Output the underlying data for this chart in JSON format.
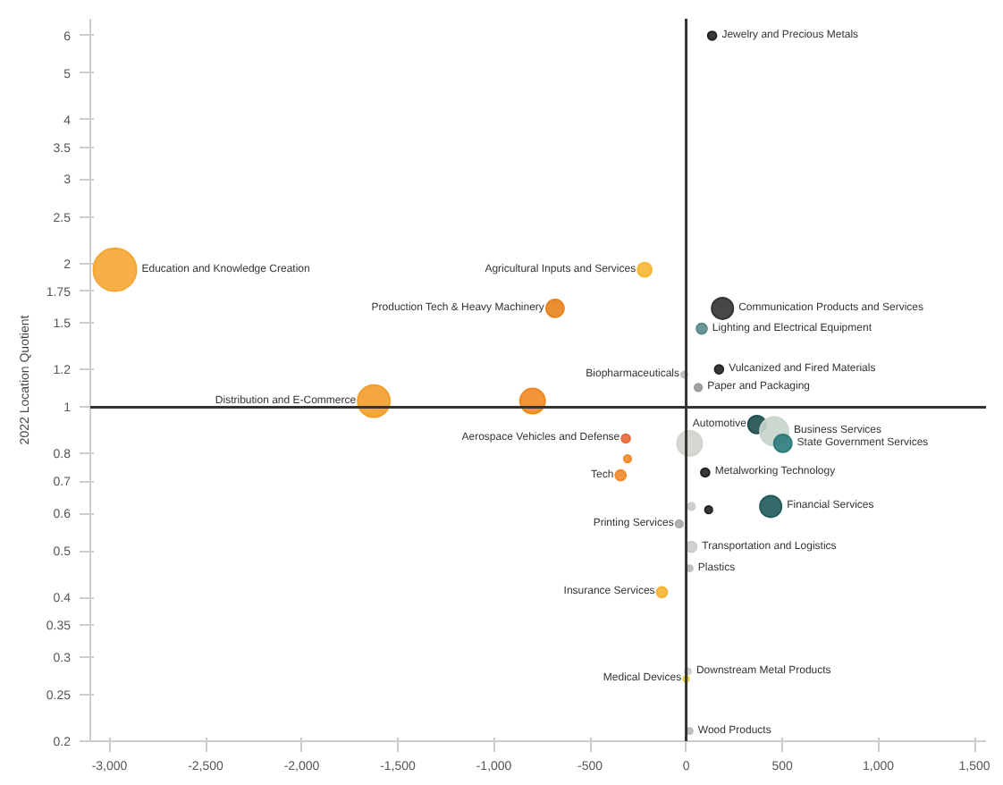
{
  "chart_data": {
    "type": "bubble",
    "ylabel": "2022 Location Quotient",
    "x": [
      -2972,
      -216,
      -682,
      135,
      189,
      81,
      171,
      -10,
      63,
      -1625,
      -799,
      368,
      458,
      503,
      -314,
      18,
      -305,
      -341,
      99,
      440,
      27,
      117,
      -36,
      27,
      18,
      -126,
      9,
      0,
      18
    ],
    "values": [
      1.94,
      1.94,
      1.61,
      5.99,
      1.61,
      1.46,
      1.2,
      1.17,
      1.1,
      1.03,
      1.03,
      0.92,
      0.89,
      0.84,
      0.86,
      0.84,
      0.78,
      0.72,
      0.73,
      0.62,
      0.62,
      0.61,
      0.57,
      0.51,
      0.46,
      0.41,
      0.28,
      0.27,
      0.21
    ],
    "sizes": [
      1,
      0.11,
      0.17,
      0.04,
      0.25,
      0.06,
      0.04,
      0.02,
      0.03,
      0.56,
      0.34,
      0.17,
      0.44,
      0.17,
      0.04,
      0.34,
      0.03,
      0.06,
      0.04,
      0.25,
      0.03,
      0.03,
      0.03,
      0.06,
      0.02,
      0.06,
      0.02,
      0.02,
      0.02
    ],
    "colors": [
      "#f5a533",
      "#f7b733",
      "#e8821e",
      "#222222",
      "#333333",
      "#5a8a8a",
      "#222222",
      "#bbbbbb",
      "#999999",
      "#f39c2a",
      "#ef8a22",
      "#1f4e4e",
      "#c8d4cc",
      "#2e7a7a",
      "#e8693a",
      "#d0d4cc",
      "#f08a2a",
      "#f08a2a",
      "#222222",
      "#1f5a5a",
      "#cccccc",
      "#222222",
      "#aaaaaa",
      "#cccccc",
      "#bbbbbb",
      "#f5b433",
      "#cccccc",
      "#e8d84a",
      "#bbbbbb"
    ],
    "annotations": [
      {
        "text": "Education and Knowledge Creation",
        "x": -2972,
        "y": 1.94
      },
      {
        "text": "Agricultural Inputs and Services",
        "x": -216,
        "y": 1.94
      },
      {
        "text": "Production Tech & Heavy Machinery",
        "x": -682,
        "y": 1.61
      },
      {
        "text": "Jewelry and Precious Metals",
        "x": 135,
        "y": 5.99
      },
      {
        "text": "Communication Products and Services",
        "x": 189,
        "y": 1.61
      },
      {
        "text": "Lighting and Electrical Equipment",
        "x": 81,
        "y": 1.46
      },
      {
        "text": "Vulcanized and Fired Materials",
        "x": 171,
        "y": 1.2
      },
      {
        "text": "Biopharmaceuticals",
        "x": -10,
        "y": 1.17
      },
      {
        "text": "Paper and Packaging",
        "x": 63,
        "y": 1.1
      },
      {
        "text": "Distribution and E-Commerce",
        "x": -1625,
        "y": 1.03
      },
      {
        "text": "Automotive",
        "x": 368,
        "y": 0.92
      },
      {
        "text": "Business Services",
        "x": 458,
        "y": 0.89
      },
      {
        "text": "State Government Services",
        "x": 503,
        "y": 0.84
      },
      {
        "text": "Aerospace Vehicles and Defense",
        "x": -314,
        "y": 0.86
      },
      {
        "text": "Tech",
        "x": -341,
        "y": 0.72
      },
      {
        "text": "Metalworking Technology",
        "x": 99,
        "y": 0.73
      },
      {
        "text": "Financial Services",
        "x": 440,
        "y": 0.62
      },
      {
        "text": "Printing Services",
        "x": -36,
        "y": 0.57
      },
      {
        "text": "Transportation and Logistics",
        "x": 27,
        "y": 0.51
      },
      {
        "text": "Plastics",
        "x": 18,
        "y": 0.46
      },
      {
        "text": "Insurance Services",
        "x": -126,
        "y": 0.41
      },
      {
        "text": "Downstream Metal Products",
        "x": 9,
        "y": 0.28
      },
      {
        "text": "Medical Devices",
        "x": 0,
        "y": 0.27
      },
      {
        "text": "Wood Products",
        "x": 18,
        "y": 0.21
      }
    ],
    "ref_lines": [
      {
        "axis": "y",
        "value": 1,
        "color": "#333333"
      },
      {
        "axis": "x",
        "value": 0,
        "color": "#333333"
      }
    ],
    "log": "y",
    "grid": false,
    "xlim": [
      -3100,
      1560
    ],
    "xticks": [
      {
        "value": -3000,
        "label": "-3,000"
      },
      {
        "value": -2500,
        "label": "-2,500"
      },
      {
        "value": -2000,
        "label": "-2,000"
      },
      {
        "value": -1500,
        "label": "-1,500"
      },
      {
        "value": -1000,
        "label": "-1,000"
      },
      {
        "value": -500,
        "label": "-500"
      },
      0,
      500,
      {
        "value": 1000,
        "label": "1,000"
      },
      {
        "value": 1500,
        "label": "1,500"
      }
    ],
    "ylim": [
      0.2,
      6.5
    ],
    "yticks": [
      0.2,
      0.25,
      0.3,
      0.35,
      0.4,
      0.5,
      0.6,
      0.7,
      0.8,
      1,
      1.2,
      1.5,
      1.75,
      2,
      2.5,
      3,
      3.5,
      4,
      5,
      6
    ]
  }
}
